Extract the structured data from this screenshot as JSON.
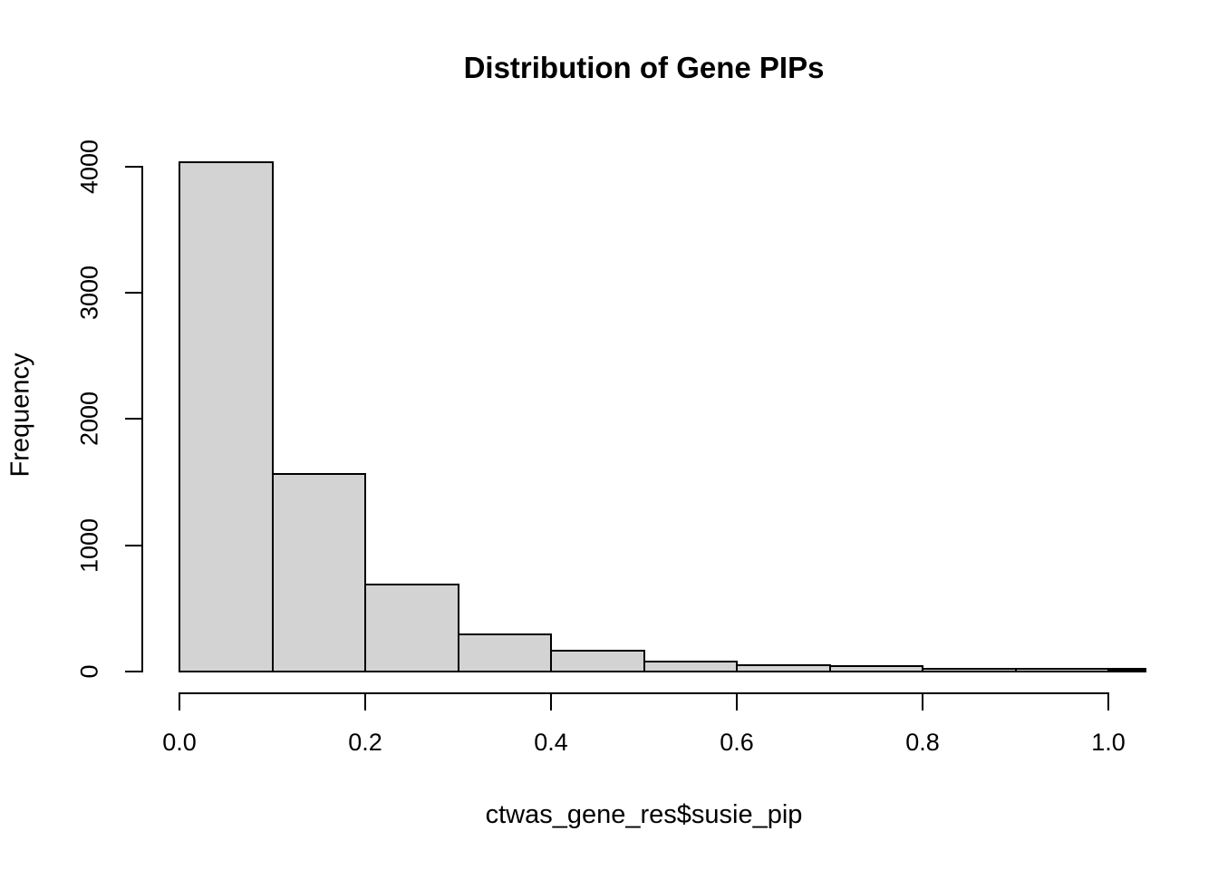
{
  "chart_data": {
    "type": "bar",
    "subtype": "histogram",
    "title": "Distribution of Gene PIPs",
    "xlabel": "ctwas_gene_res$susie_pip",
    "ylabel": "Frequency",
    "bins": [
      {
        "from": 0.0,
        "to": 0.1,
        "count": 4030
      },
      {
        "from": 0.1,
        "to": 0.2,
        "count": 1565
      },
      {
        "from": 0.2,
        "to": 0.3,
        "count": 690
      },
      {
        "from": 0.3,
        "to": 0.4,
        "count": 295
      },
      {
        "from": 0.4,
        "to": 0.5,
        "count": 168
      },
      {
        "from": 0.5,
        "to": 0.6,
        "count": 82
      },
      {
        "from": 0.6,
        "to": 0.7,
        "count": 48
      },
      {
        "from": 0.7,
        "to": 0.8,
        "count": 42
      },
      {
        "from": 0.8,
        "to": 0.9,
        "count": 25
      },
      {
        "from": 0.9,
        "to": 1.0,
        "count": 19
      }
    ],
    "overflow_bar": {
      "from": 1.0,
      "to": 1.04,
      "count": 22,
      "clipped": true,
      "fill": "#000000"
    },
    "x_ticks": [
      {
        "value": 0.0,
        "label": "0.0"
      },
      {
        "value": 0.2,
        "label": "0.2"
      },
      {
        "value": 0.4,
        "label": "0.4"
      },
      {
        "value": 0.6,
        "label": "0.6"
      },
      {
        "value": 0.8,
        "label": "0.8"
      },
      {
        "value": 1.0,
        "label": "1.0"
      }
    ],
    "y_ticks": [
      {
        "value": 0,
        "label": "0"
      },
      {
        "value": 1000,
        "label": "1000"
      },
      {
        "value": 2000,
        "label": "2000"
      },
      {
        "value": 3000,
        "label": "3000"
      },
      {
        "value": 4000,
        "label": "4000"
      }
    ],
    "xlim": [
      0,
      1.04
    ],
    "ylim": [
      0,
      4160
    ],
    "grid": false,
    "legend": null,
    "bar_fill": "#d3d3d3",
    "bar_border": "#000000",
    "background": "#ffffff",
    "text_color": "#000000"
  }
}
